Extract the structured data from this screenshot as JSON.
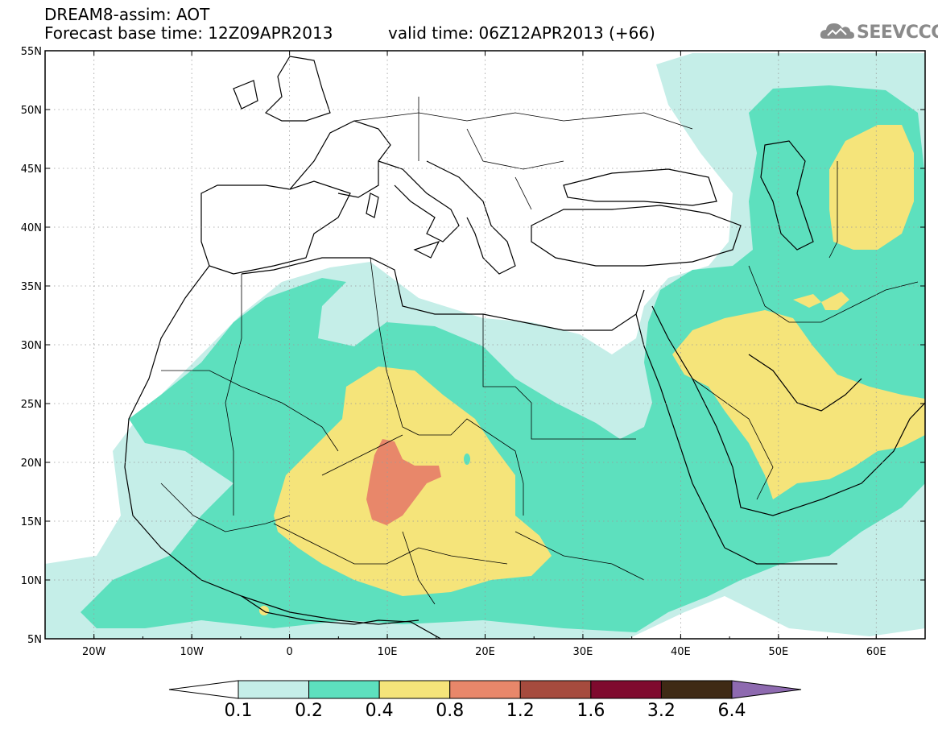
{
  "header": {
    "line1": "DREAM8-assim: AOT",
    "line2": "Forecast base time: 12Z09APR2013",
    "line3": "valid time: 06Z12APR2013 (+66)"
  },
  "logo": {
    "text": "SEEVCCC",
    "icon": "cloud-icon"
  },
  "map": {
    "lon_range": [
      -25,
      65
    ],
    "lat_range": [
      5,
      55
    ],
    "gridlines": "dotted",
    "lat_labels": [
      "55N",
      "50N",
      "45N",
      "40N",
      "35N",
      "30N",
      "25N",
      "20N",
      "15N",
      "10N",
      "5N"
    ],
    "lon_labels": [
      "20W",
      "10W",
      "0",
      "10E",
      "20E",
      "30E",
      "40E",
      "50E",
      "60E"
    ]
  },
  "legend": {
    "labels": [
      "0.1",
      "0.2",
      "0.4",
      "0.8",
      "1.2",
      "1.6",
      "3.2",
      "6.4"
    ],
    "colors": [
      "#ffffff",
      "#c5eee8",
      "#5de0be",
      "#f5e47a",
      "#e8876a",
      "#a64b3e",
      "#7f0a2e",
      "#3f2a15",
      "#8e6ab0"
    ]
  }
}
